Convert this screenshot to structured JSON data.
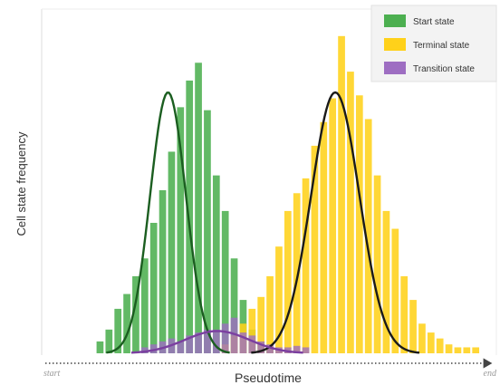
{
  "chart_data": {
    "type": "bar",
    "title": "",
    "xlabel": "Pseudotime",
    "ylabel": "Cell state frequency",
    "x_tick_labels": {
      "start": "start",
      "end": "end"
    },
    "grid": false,
    "legend_position": "top-right",
    "bin_count": 48,
    "series": [
      {
        "name": "Start state",
        "color": "#4caf50",
        "curve_color": "#1b5e20",
        "bin_start": 4,
        "values": [
          0.04,
          0.08,
          0.15,
          0.2,
          0.26,
          0.32,
          0.44,
          0.55,
          0.68,
          0.83,
          0.92,
          0.98,
          0.82,
          0.6,
          0.48,
          0.32,
          0.18,
          0.08,
          0.04,
          0.02
        ],
        "fit": {
          "mean": 12.1,
          "sd": 2.0,
          "peak": 0.88
        }
      },
      {
        "name": "Terminal state",
        "color": "#ffd11a",
        "curve_color": "#1a1a1a",
        "bin_start": 18,
        "values": [
          0.03,
          0.06,
          0.1,
          0.15,
          0.19,
          0.26,
          0.36,
          0.48,
          0.54,
          0.59,
          0.7,
          0.78,
          0.86,
          1.07,
          0.95,
          0.87,
          0.79,
          0.6,
          0.48,
          0.42,
          0.26,
          0.18,
          0.1,
          0.07,
          0.05,
          0.03,
          0.02,
          0.02,
          0.02
        ],
        "fit": {
          "mean": 30.8,
          "sd": 2.7,
          "peak": 0.88
        }
      },
      {
        "name": "Transition state",
        "color": "#9e6ec2",
        "curve_color": "#7b3fa0",
        "bin_start": 9,
        "values": [
          0.02,
          0.03,
          0.04,
          0.05,
          0.04,
          0.06,
          0.07,
          0.08,
          0.08,
          0.1,
          0.12,
          0.07,
          0.06,
          0.04,
          0.03,
          0.02,
          0.02,
          0.025,
          0.02
        ],
        "fit": {
          "mean": 17.6,
          "sd": 3.6,
          "peak": 0.075
        }
      }
    ]
  }
}
